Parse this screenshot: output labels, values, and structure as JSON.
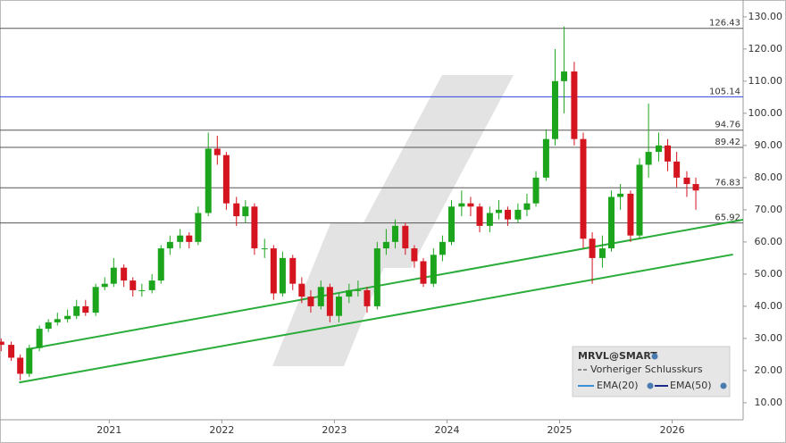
{
  "chart_data": {
    "type": "candlestick",
    "x": [
      2020.04,
      2020.13,
      2020.21,
      2020.29,
      2020.38,
      2020.46,
      2020.54,
      2020.63,
      2020.71,
      2020.79,
      2020.88,
      2020.96,
      2021.04,
      2021.13,
      2021.21,
      2021.29,
      2021.38,
      2021.46,
      2021.54,
      2021.63,
      2021.71,
      2021.79,
      2021.88,
      2021.96,
      2022.04,
      2022.13,
      2022.21,
      2022.29,
      2022.38,
      2022.46,
      2022.54,
      2022.63,
      2022.71,
      2022.79,
      2022.88,
      2022.96,
      2023.04,
      2023.13,
      2023.21,
      2023.29,
      2023.38,
      2023.46,
      2023.54,
      2023.63,
      2023.71,
      2023.79,
      2023.88,
      2023.96,
      2024.04,
      2024.13,
      2024.21,
      2024.29,
      2024.38,
      2024.46,
      2024.54,
      2024.63,
      2024.71,
      2024.79,
      2024.88,
      2024.96,
      2025.04,
      2025.13,
      2025.21,
      2025.29,
      2025.38,
      2025.46,
      2025.54,
      2025.63,
      2025.71,
      2025.79,
      2025.88,
      2025.96,
      2026.04,
      2026.13,
      2026.21
    ],
    "open": [
      29,
      28,
      24,
      19,
      27,
      33,
      35,
      36,
      37,
      40,
      38,
      46,
      47,
      52,
      48,
      45,
      45,
      48,
      58,
      60,
      62,
      60,
      69,
      89,
      87,
      72,
      68,
      71,
      58,
      58,
      44,
      55,
      47,
      43,
      40,
      46,
      37,
      43,
      45,
      45,
      40,
      58,
      60,
      65,
      58,
      54,
      47,
      56,
      60,
      71,
      72,
      71,
      65,
      69,
      70,
      67,
      70,
      72,
      80,
      92,
      110,
      113,
      92,
      61,
      55,
      58,
      74,
      75,
      62,
      84,
      88,
      90,
      85,
      80,
      78
    ],
    "high": [
      30,
      29,
      25,
      28,
      34,
      36,
      38,
      39,
      42,
      42,
      47,
      49,
      55,
      53,
      49,
      47,
      50,
      59,
      62,
      64,
      63,
      71,
      94,
      93,
      88,
      74,
      73,
      72,
      61,
      59,
      57,
      56,
      49,
      45,
      48,
      47,
      44,
      47,
      48,
      46,
      60,
      64,
      67,
      66,
      59,
      55,
      58,
      62,
      73,
      76,
      74,
      72,
      71,
      73,
      71,
      72,
      75,
      82,
      95,
      120,
      127,
      116,
      94,
      63,
      62,
      76,
      78,
      76,
      86,
      103,
      94,
      92,
      88,
      82,
      80
    ],
    "low": [
      26,
      23,
      17,
      18,
      26,
      32,
      34,
      35,
      36,
      37,
      37,
      45,
      46,
      46,
      43,
      43,
      44,
      47,
      56,
      58,
      58,
      59,
      68,
      84,
      70,
      65,
      66,
      56,
      55,
      42,
      43,
      45,
      41,
      38,
      39,
      35,
      35,
      41,
      43,
      38,
      39,
      56,
      58,
      56,
      52,
      46,
      46,
      54,
      59,
      68,
      68,
      63,
      63,
      67,
      65,
      66,
      68,
      71,
      79,
      90,
      100,
      90,
      58,
      47,
      52,
      57,
      70,
      60,
      61,
      80,
      85,
      82,
      77,
      74,
      70
    ],
    "close": [
      28,
      24,
      19,
      27,
      33,
      35,
      36,
      37,
      40,
      38,
      46,
      47,
      52,
      48,
      45,
      45,
      48,
      58,
      60,
      62,
      60,
      69,
      89,
      87,
      72,
      68,
      71,
      58,
      58,
      44,
      55,
      47,
      43,
      40,
      46,
      37,
      43,
      45,
      45,
      40,
      58,
      60,
      65,
      58,
      54,
      47,
      56,
      60,
      71,
      72,
      71,
      65,
      69,
      70,
      67,
      70,
      72,
      80,
      92,
      110,
      113,
      92,
      61,
      55,
      58,
      74,
      75,
      62,
      84,
      88,
      90,
      85,
      80,
      78,
      76
    ],
    "up_color": "#1ca51c",
    "down_color": "#d4141f",
    "xlim": [
      2020.03,
      2026.63
    ],
    "xticks": [
      2021,
      2022,
      2023,
      2024,
      2025,
      2026
    ],
    "ylim": [
      4.7,
      134.4
    ],
    "yticks": [
      {
        "value": 10,
        "label": "10.00"
      },
      {
        "value": 20,
        "label": "20.00"
      },
      {
        "value": 30,
        "label": "30.00"
      },
      {
        "value": 40,
        "label": "40.00"
      },
      {
        "value": 50,
        "label": "50.00"
      },
      {
        "value": 60,
        "label": "60.00"
      },
      {
        "value": 70,
        "label": "70.00"
      },
      {
        "value": 80,
        "label": "80.00"
      },
      {
        "value": 90,
        "label": "90.00"
      },
      {
        "value": 100,
        "label": "100.00"
      },
      {
        "value": 110,
        "label": "110.00"
      },
      {
        "value": 120,
        "label": "120.00"
      },
      {
        "value": 130,
        "label": "130.00"
      }
    ],
    "levels": [
      {
        "value": 126.43,
        "color": "#555555"
      },
      {
        "value": 105.14,
        "color": "#3344dd"
      },
      {
        "value": 94.76,
        "color": "#555555"
      },
      {
        "value": 89.42,
        "color": "#555555"
      },
      {
        "value": 76.83,
        "color": "#555555"
      },
      {
        "value": 65.92,
        "color": "#555555"
      }
    ],
    "trendlines": [
      {
        "x": [
          2020.27,
          2026.63
        ],
        "y": [
          26.6,
          66.9
        ],
        "color": "#2aac3a"
      },
      {
        "x": [
          2020.2,
          2026.54
        ],
        "y": [
          16.3,
          56.1
        ],
        "color": "#2aac3a"
      }
    ],
    "legend": {
      "symbol": "MRVL@SMART",
      "items": [
        "Vorheriger Schlusskurs",
        "EMA(20)",
        "EMA(50)"
      ]
    }
  }
}
